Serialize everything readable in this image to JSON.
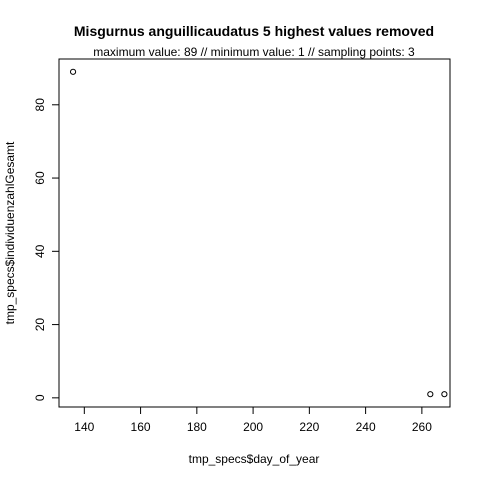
{
  "chart_data": {
    "type": "scatter",
    "title": "Misgurnus anguillicaudatus  5 highest values removed",
    "subtitle": "maximum value: 89  //  minimum value: 1  // sampling points: 3",
    "xlabel": "tmp_specs$day_of_year",
    "ylabel": "tmp_specs$individuenzahlGesamt",
    "xlim": [
      131,
      270
    ],
    "ylim": [
      -2.5,
      92.5
    ],
    "x_ticks": [
      140,
      160,
      180,
      200,
      220,
      240,
      260
    ],
    "y_ticks": [
      0,
      20,
      40,
      60,
      80
    ],
    "grid": false,
    "points": [
      {
        "x": 136,
        "y": 89
      },
      {
        "x": 263,
        "y": 1
      },
      {
        "x": 268,
        "y": 1
      }
    ]
  }
}
